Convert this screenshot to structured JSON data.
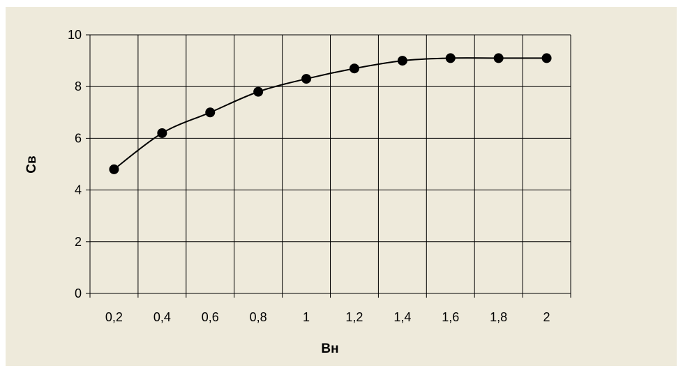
{
  "colors": {
    "chart_background": "#EEEADB",
    "plot_background": "#EEEADB",
    "gridline": "#000000",
    "series_line": "#000000",
    "marker": "#000000"
  },
  "chart_data": {
    "type": "line",
    "title": "",
    "xlabel": "Вн",
    "ylabel": "Св",
    "categories": [
      "0,2",
      "0,4",
      "0,6",
      "0,8",
      "1",
      "1,2",
      "1,4",
      "1,6",
      "1,8",
      "2"
    ],
    "series": [
      {
        "values": [
          4.8,
          6.2,
          7.0,
          7.8,
          8.3,
          8.7,
          9.0,
          9.1,
          9.1,
          9.1
        ],
        "marker": "circle",
        "smooth": true
      }
    ],
    "ylim": [
      0,
      10
    ],
    "y_ticks": [
      0,
      2,
      4,
      6,
      8,
      10
    ],
    "y_tick_labels": [
      "0",
      "2",
      "4",
      "6",
      "8",
      "10"
    ],
    "grid": true,
    "legend": "none"
  }
}
